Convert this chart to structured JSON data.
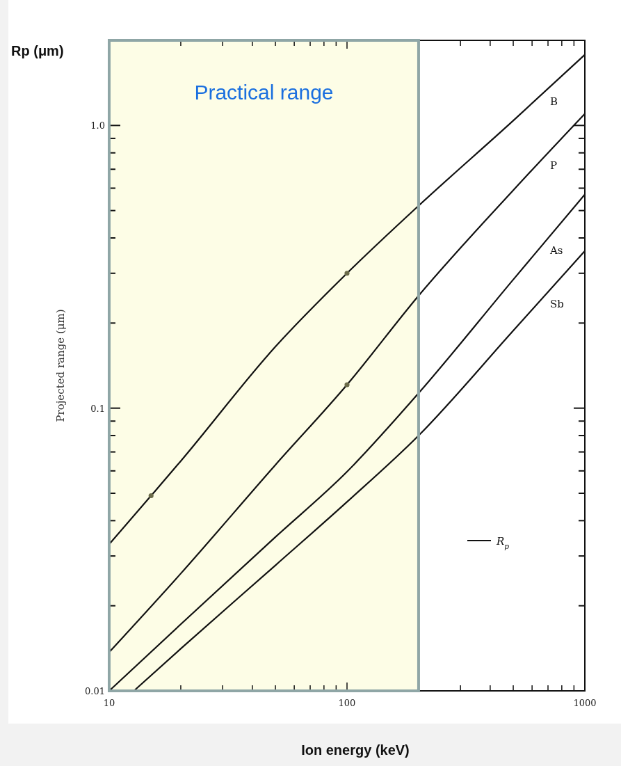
{
  "chart_data": {
    "type": "line",
    "xlabel": "Ion energy (keV)",
    "ylabel": "Projected range (μm)",
    "annotations": [
      "Rp (μm)",
      "R$_{p}$"
    ],
    "log": "xy",
    "grid": false,
    "line_style": "solid",
    "xlim": [
      10,
      1000
    ],
    "ylim": [
      0.01,
      2
    ],
    "xticks": [
      10,
      {
        "value": 20,
        "label": null
      },
      {
        "value": 30,
        "label": null
      },
      {
        "value": 40,
        "label": null
      },
      {
        "value": 50,
        "label": null
      },
      {
        "value": 60,
        "label": null
      },
      {
        "value": 70,
        "label": null
      },
      {
        "value": 80,
        "label": null
      },
      {
        "value": 90,
        "label": null
      },
      100,
      {
        "value": 200,
        "label": null
      },
      {
        "value": 300,
        "label": null
      },
      {
        "value": 400,
        "label": null
      },
      {
        "value": 500,
        "label": null
      },
      {
        "value": 600,
        "label": null
      },
      {
        "value": 700,
        "label": null
      },
      {
        "value": 800,
        "label": null
      },
      {
        "value": 900,
        "label": null
      },
      1000
    ],
    "yticks": [
      0.01,
      {
        "value": 0.02,
        "label": null
      },
      {
        "value": 0.03,
        "label": null
      },
      {
        "value": 0.04,
        "label": null
      },
      {
        "value": 0.05,
        "label": null
      },
      {
        "value": 0.06,
        "label": null
      },
      {
        "value": 0.07,
        "label": null
      },
      {
        "value": 0.08,
        "label": null
      },
      {
        "value": 0.09,
        "label": null
      },
      0.1,
      {
        "value": 0.2,
        "label": null
      },
      {
        "value": 0.3,
        "label": null
      },
      {
        "value": 0.4,
        "label": null
      },
      {
        "value": 0.5,
        "label": null
      },
      {
        "value": 0.6,
        "label": null
      },
      {
        "value": 0.7,
        "label": null
      },
      {
        "value": 0.8,
        "label": null
      },
      {
        "value": 0.9,
        "label": null
      },
      {
        "value": 1,
        "label": "1.0"
      },
      {
        "value": 2,
        "label": null
      }
    ],
    "bands": [
      {
        "axis": "x",
        "from": 10,
        "to": 200,
        "label": "Practical range",
        "color": "#fdfde6"
      }
    ],
    "series": [
      {
        "name": "B",
        "color": "#111111",
        "x": [
          10,
          15,
          20,
          50,
          100,
          200,
          500,
          1000
        ],
        "values": [
          0.033,
          0.049,
          0.065,
          0.165,
          0.3,
          0.52,
          1.04,
          1.78
        ]
      },
      {
        "name": "P",
        "color": "#111111",
        "x": [
          10,
          20,
          50,
          100,
          200,
          500,
          1000
        ],
        "values": [
          0.0137,
          0.026,
          0.063,
          0.121,
          0.25,
          0.59,
          1.1
        ]
      },
      {
        "name": "As",
        "color": "#111111",
        "x": [
          10,
          20,
          50,
          100,
          200,
          500,
          1000
        ],
        "values": [
          0.01,
          0.0172,
          0.035,
          0.0596,
          0.113,
          0.285,
          0.57
        ]
      },
      {
        "name": "Sb",
        "color": "#111111",
        "x": [
          12.7,
          20,
          50,
          100,
          200,
          500,
          1000
        ],
        "values": [
          0.01,
          0.0141,
          0.0278,
          0.0466,
          0.08,
          0.188,
          0.36
        ]
      },
      {
        "type": "scatter",
        "color": "#6b6b4a",
        "marker": "circle",
        "x": [
          15,
          100,
          100
        ],
        "values": [
          0.049,
          0.3,
          0.121
        ]
      }
    ]
  }
}
